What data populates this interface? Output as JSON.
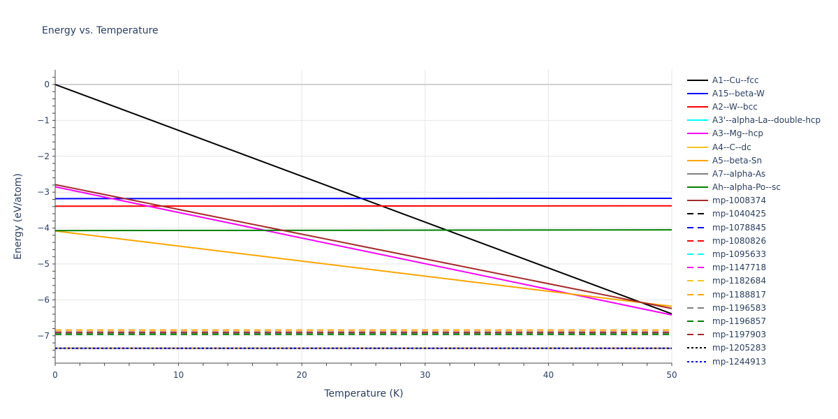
{
  "title": "Energy vs. Temperature",
  "chart_data": {
    "type": "line",
    "title": "Energy vs. Temperature",
    "xlabel": "Temperature (K)",
    "ylabel": "Energy (eV/atom)",
    "xlim": [
      0,
      50
    ],
    "ylim": [
      -7.8,
      0.4
    ],
    "xticks": [
      0,
      10,
      20,
      30,
      40,
      50
    ],
    "yticks": [
      0,
      -1,
      -2,
      -3,
      -4,
      -5,
      -6,
      -7
    ],
    "grid": true,
    "legend_position": "right",
    "x": [
      0,
      50
    ],
    "series": [
      {
        "name": "A1--Cu--fcc",
        "color": "#000000",
        "dash": "solid",
        "values": [
          0.0,
          -6.39
        ]
      },
      {
        "name": "A15--beta-W",
        "color": "#0000ff",
        "dash": "solid",
        "values": [
          -3.18,
          -3.17
        ]
      },
      {
        "name": "A2--W--bcc",
        "color": "#ff0000",
        "dash": "solid",
        "values": [
          -3.39,
          -3.38
        ]
      },
      {
        "name": "A3'--alpha-La--double-hcp",
        "color": "#00ffff",
        "dash": "solid",
        "values": [
          null,
          null
        ]
      },
      {
        "name": "A3--Mg--hcp",
        "color": "#ff00ff",
        "dash": "solid",
        "values": [
          -2.85,
          -6.42
        ]
      },
      {
        "name": "A4--C--dc",
        "color": "#f5c518",
        "dash": "solid",
        "values": [
          -7.35,
          -7.35
        ]
      },
      {
        "name": "A5--beta-Sn",
        "color": "#ffa500",
        "dash": "solid",
        "values": [
          -4.08,
          -6.18
        ]
      },
      {
        "name": "A7--alpha-As",
        "color": "#808080",
        "dash": "solid",
        "values": [
          -7.35,
          -7.35
        ]
      },
      {
        "name": "Ah--alpha-Po--sc",
        "color": "#008000",
        "dash": "solid",
        "values": [
          -4.07,
          -4.05
        ]
      },
      {
        "name": "mp-1008374",
        "color": "#a52a2a",
        "dash": "solid",
        "values": [
          -2.79,
          -6.24
        ]
      },
      {
        "name": "mp-1040425",
        "color": "#000000",
        "dash": "dash",
        "values": [
          -7.35,
          -7.35
        ]
      },
      {
        "name": "mp-1078845",
        "color": "#0000ff",
        "dash": "dash",
        "values": [
          -6.92,
          -6.92
        ]
      },
      {
        "name": "mp-1080826",
        "color": "#ff0000",
        "dash": "dash",
        "values": [
          -6.92,
          -6.92
        ]
      },
      {
        "name": "mp-1095633",
        "color": "#00ffff",
        "dash": "dash",
        "values": [
          -6.92,
          -6.92
        ]
      },
      {
        "name": "mp-1147718",
        "color": "#ff00ff",
        "dash": "dash",
        "values": [
          -6.92,
          -6.92
        ]
      },
      {
        "name": "mp-1182684",
        "color": "#f5c518",
        "dash": "dash",
        "values": [
          -7.35,
          -7.35
        ]
      },
      {
        "name": "mp-1188817",
        "color": "#ffa500",
        "dash": "dash",
        "values": [
          -6.84,
          -6.84
        ]
      },
      {
        "name": "mp-1196583",
        "color": "#808080",
        "dash": "dash",
        "values": [
          -6.93,
          -6.93
        ]
      },
      {
        "name": "mp-1196857",
        "color": "#008000",
        "dash": "dash",
        "values": [
          -6.96,
          -6.96
        ]
      },
      {
        "name": "mp-1197903",
        "color": "#a52a2a",
        "dash": "dash",
        "values": [
          -6.9,
          -6.9
        ]
      },
      {
        "name": "mp-1205283",
        "color": "#000000",
        "dash": "dot",
        "values": [
          -7.35,
          -7.35
        ]
      },
      {
        "name": "mp-1244913",
        "color": "#0000ff",
        "dash": "dot",
        "values": [
          -7.35,
          -7.35
        ]
      }
    ]
  }
}
